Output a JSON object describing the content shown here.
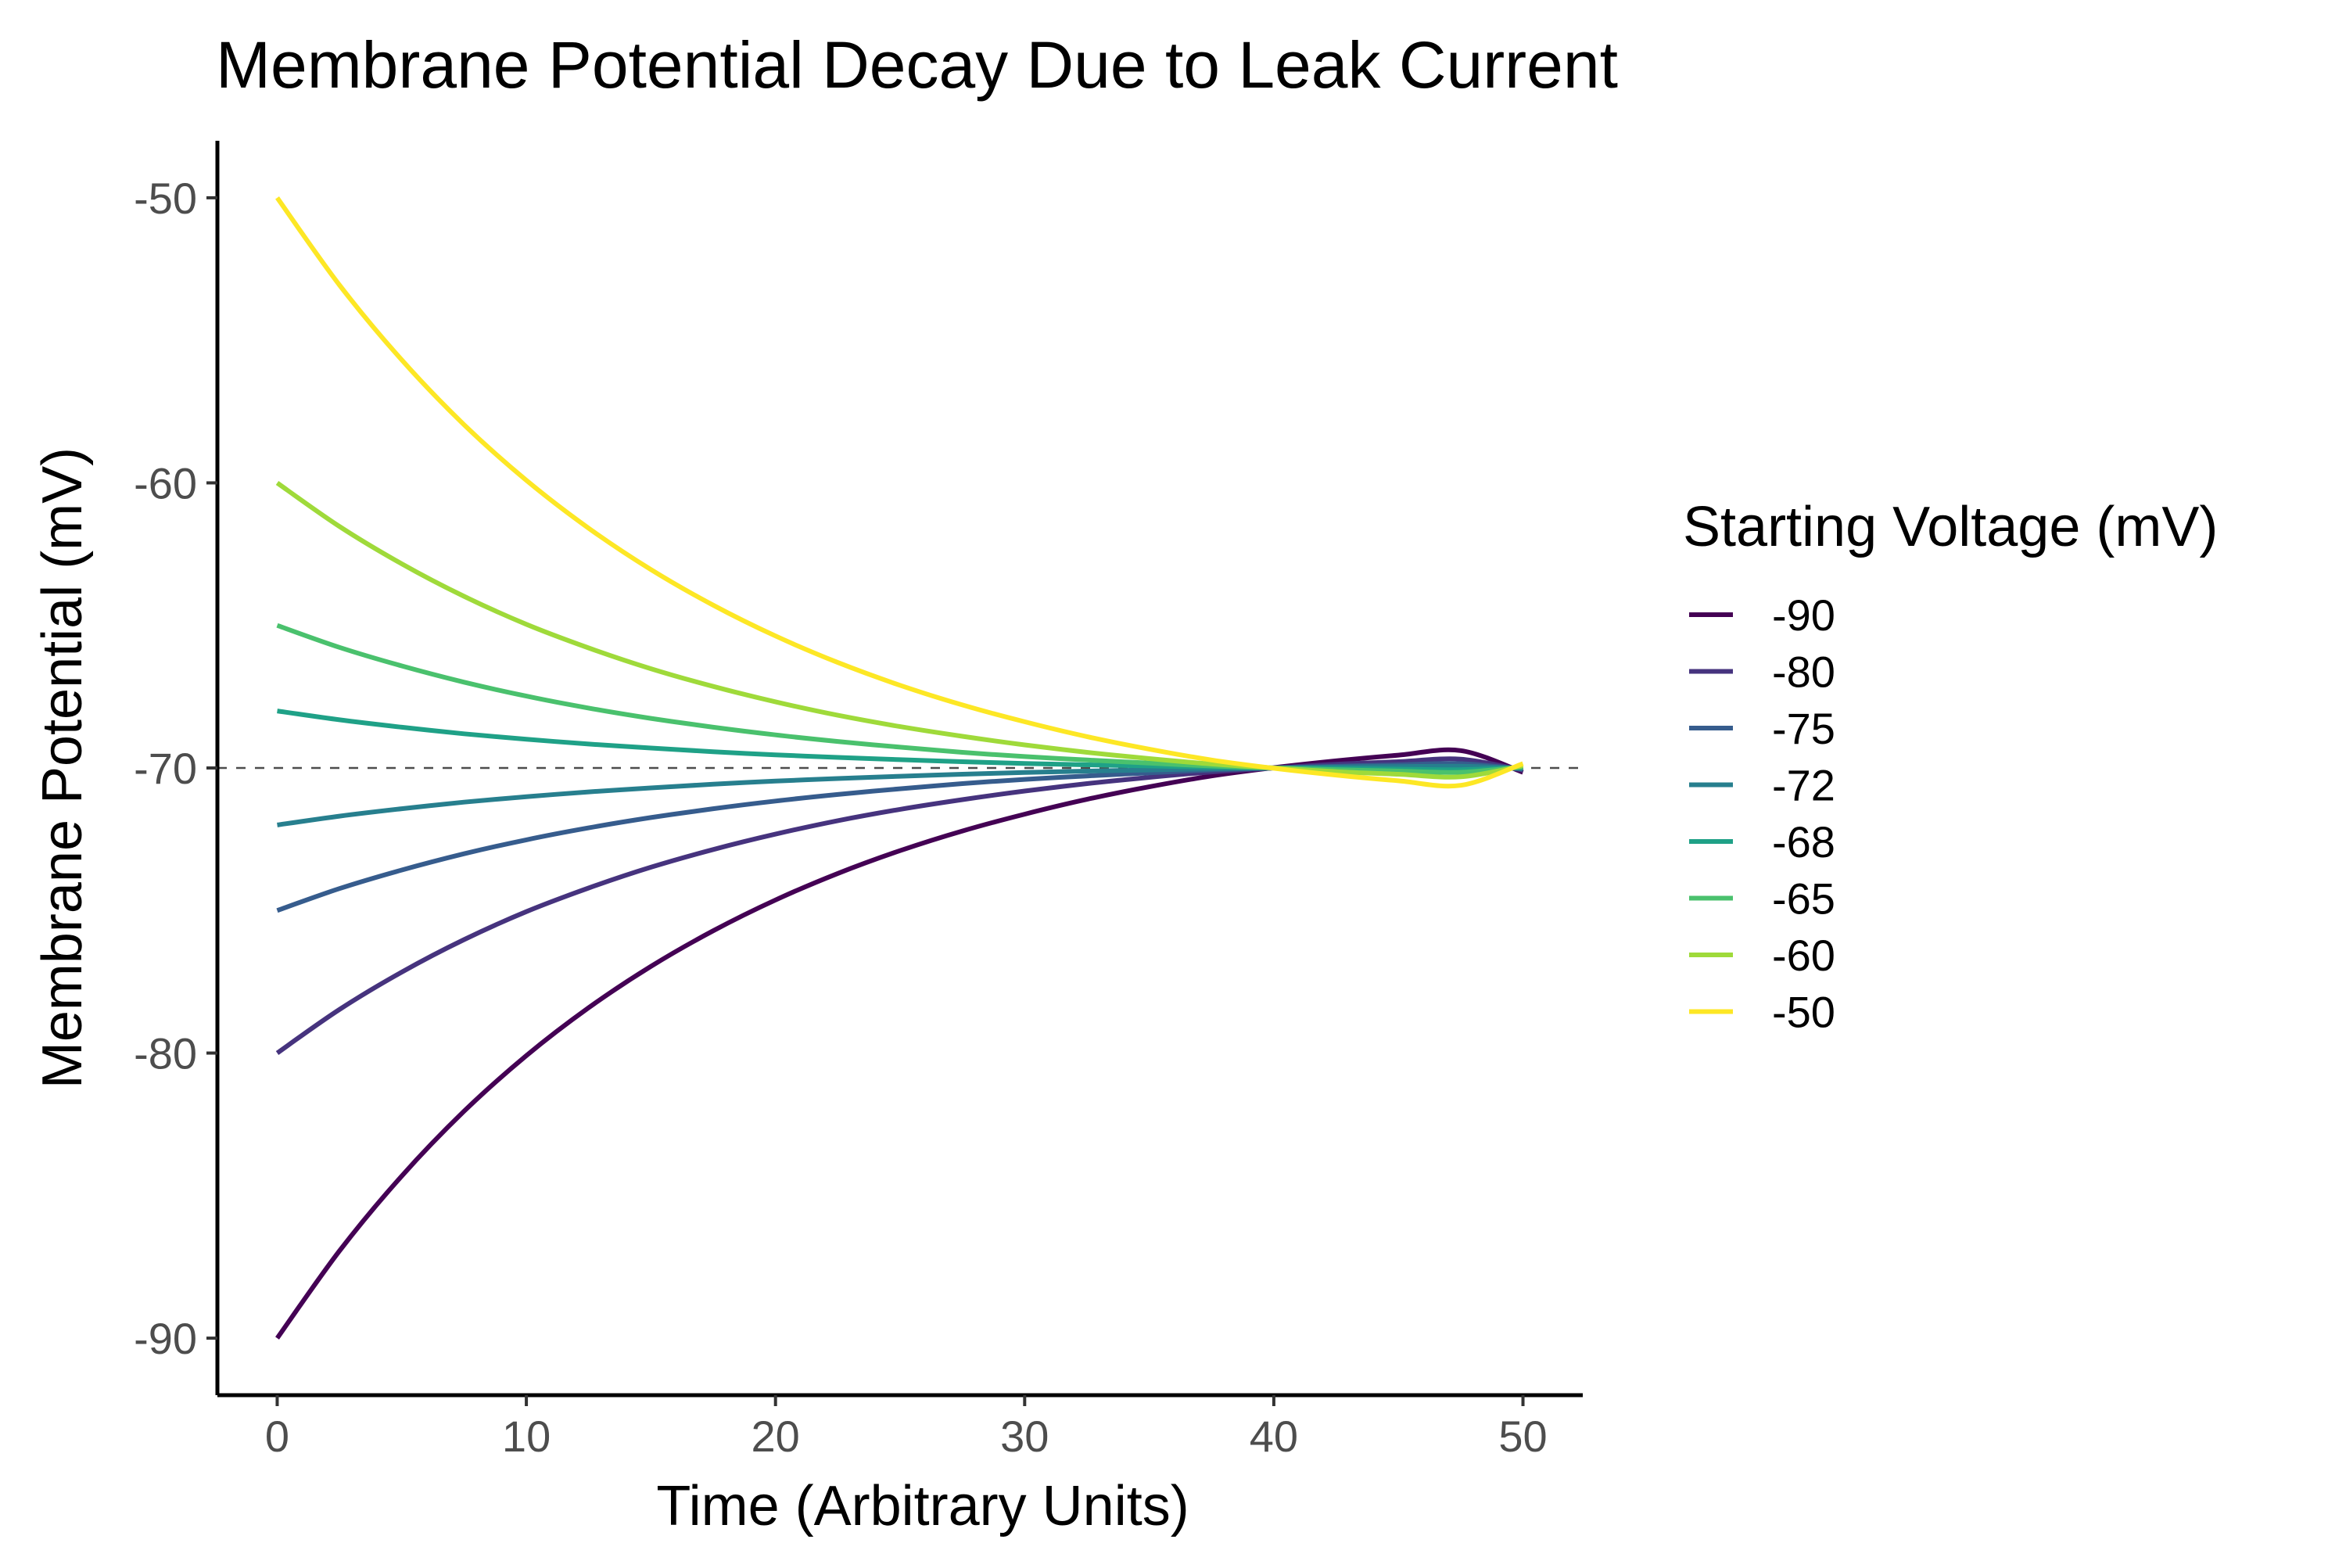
{
  "chart_data": {
    "type": "line",
    "title": "Membrane Potential Decay Due to Leak Current",
    "xlabel": "Time (Arbitrary Units)",
    "ylabel": "Membrane Potential (mV)",
    "xlim": [
      -2.4,
      52.4
    ],
    "ylim": [
      -92,
      -48
    ],
    "xticks": [
      0,
      10,
      20,
      30,
      40,
      50
    ],
    "xtick_labels": [
      "0",
      "10",
      "20",
      "30",
      "40",
      "50"
    ],
    "yticks": [
      -90,
      -80,
      -70,
      -60,
      -50
    ],
    "ytick_labels": [
      "-90",
      "-80",
      "-70",
      "-60",
      "-50"
    ],
    "reference_line": {
      "y": -70,
      "style": "dashed",
      "color": "#4d4d4d"
    },
    "grid": false,
    "legend": {
      "title": "Starting Voltage (mV)",
      "position": "right"
    },
    "x": [
      0,
      2.5,
      5,
      7.5,
      10,
      12.5,
      15,
      17.5,
      20,
      22.5,
      25,
      27.5,
      30,
      32.5,
      35,
      37.5,
      40,
      42.5,
      45,
      47.5,
      50
    ],
    "series": [
      {
        "name": "-90",
        "color": "#440154",
        "values": [
          -90,
          -86.94,
          -84.31,
          -82.04,
          -80.09,
          -78.41,
          -76.96,
          -75.71,
          -74.63,
          -73.7,
          -72.9,
          -72.21,
          -71.62,
          -71.1,
          -70.66,
          -70.28,
          -69.99,
          -69.75,
          -69.55,
          -69.39,
          -70.15
        ]
      },
      {
        "name": "-80",
        "color": "#46337E",
        "values": [
          -80,
          -78.47,
          -77.16,
          -76.02,
          -75.04,
          -74.21,
          -73.48,
          -72.86,
          -72.32,
          -71.85,
          -71.45,
          -71.11,
          -70.81,
          -70.55,
          -70.33,
          -70.14,
          -70.0,
          -69.87,
          -69.78,
          -69.69,
          -70.08
        ]
      },
      {
        "name": "-75",
        "color": "#365C8D",
        "values": [
          -75,
          -74.23,
          -73.58,
          -73.01,
          -72.52,
          -72.1,
          -71.74,
          -71.43,
          -71.16,
          -70.93,
          -70.73,
          -70.55,
          -70.4,
          -70.28,
          -70.17,
          -70.07,
          -70.0,
          -69.94,
          -69.89,
          -69.85,
          -70.04
        ]
      },
      {
        "name": "-72",
        "color": "#277F8E",
        "values": [
          -72,
          -71.69,
          -71.43,
          -71.2,
          -71.01,
          -70.84,
          -70.7,
          -70.57,
          -70.46,
          -70.37,
          -70.29,
          -70.22,
          -70.16,
          -70.11,
          -70.07,
          -70.03,
          -70.0,
          -69.97,
          -69.95,
          -69.94,
          -70.02
        ]
      },
      {
        "name": "-68",
        "color": "#1FA187",
        "values": [
          -68,
          -68.31,
          -68.57,
          -68.8,
          -68.99,
          -69.16,
          -69.3,
          -69.43,
          -69.54,
          -69.63,
          -69.71,
          -69.78,
          -69.84,
          -69.89,
          -69.93,
          -69.97,
          -70.0,
          -70.02,
          -70.04,
          -70.06,
          -69.98
        ]
      },
      {
        "name": "-65",
        "color": "#4AC16D",
        "values": [
          -65,
          -65.77,
          -66.42,
          -66.99,
          -67.48,
          -67.9,
          -68.26,
          -68.57,
          -68.84,
          -69.07,
          -69.27,
          -69.45,
          -69.6,
          -69.72,
          -69.83,
          -69.93,
          -70.0,
          -70.06,
          -70.11,
          -70.15,
          -69.96
        ]
      },
      {
        "name": "-60",
        "color": "#9FDA3A",
        "values": [
          -60,
          -61.53,
          -62.84,
          -63.98,
          -64.96,
          -65.79,
          -66.52,
          -67.14,
          -67.68,
          -68.15,
          -68.55,
          -68.89,
          -69.19,
          -69.45,
          -69.67,
          -69.86,
          -70.0,
          -70.13,
          -70.22,
          -70.31,
          -69.92
        ]
      },
      {
        "name": "-50",
        "color": "#FDE725",
        "values": [
          -50,
          -53.06,
          -55.69,
          -57.96,
          -59.91,
          -61.59,
          -63.04,
          -64.29,
          -65.37,
          -66.3,
          -67.1,
          -67.79,
          -68.38,
          -68.9,
          -69.34,
          -69.72,
          -70.01,
          -70.25,
          -70.45,
          -70.61,
          -69.85
        ]
      }
    ]
  }
}
